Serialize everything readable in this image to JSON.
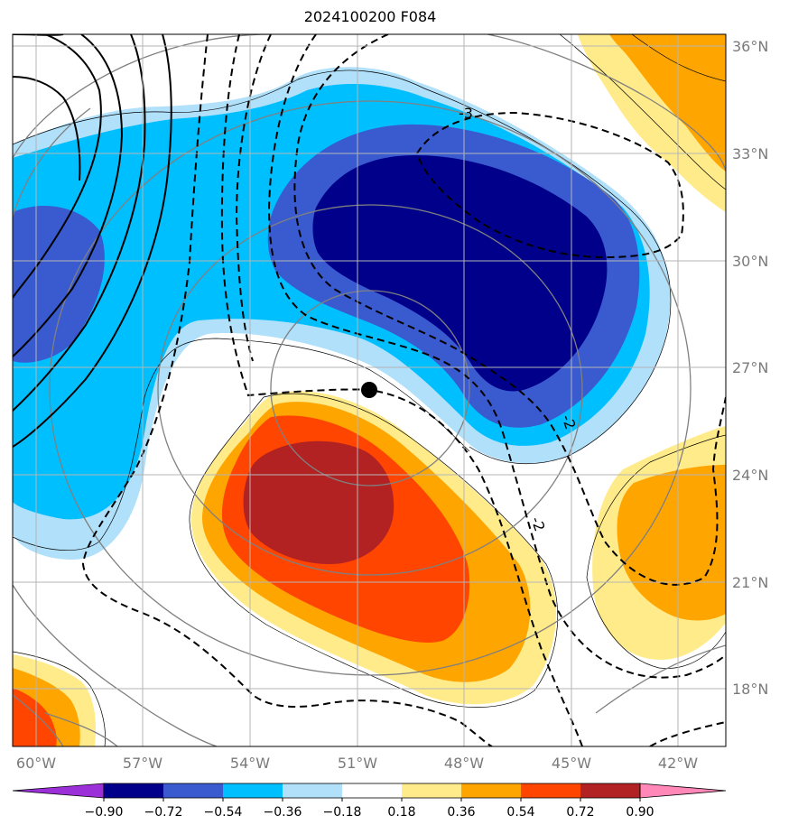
{
  "title": "2024100200 F084",
  "map": {
    "lon_ticks": [
      "60°W",
      "57°W",
      "54°W",
      "51°W",
      "48°W",
      "45°W",
      "42°W"
    ],
    "lat_ticks": [
      "36°N",
      "33°N",
      "30°N",
      "27°N",
      "24°N",
      "21°N",
      "18°N"
    ],
    "center_marker": "storm-center",
    "contour_labels": [
      "-3",
      "-2",
      "-2"
    ],
    "grid": true
  },
  "colorbar": {
    "ticks": [
      "−0.90",
      "−0.72",
      "−0.54",
      "−0.36",
      "−0.18",
      "0.18",
      "0.36",
      "0.54",
      "0.72",
      "0.90"
    ],
    "colors": [
      "#9b30d9",
      "#00008b",
      "#3a5acf",
      "#00bfff",
      "#b0e0fa",
      "#ffffff",
      "#ffeb8a",
      "#ffa500",
      "#ff4500",
      "#b22222",
      "#ff88b8"
    ]
  }
}
